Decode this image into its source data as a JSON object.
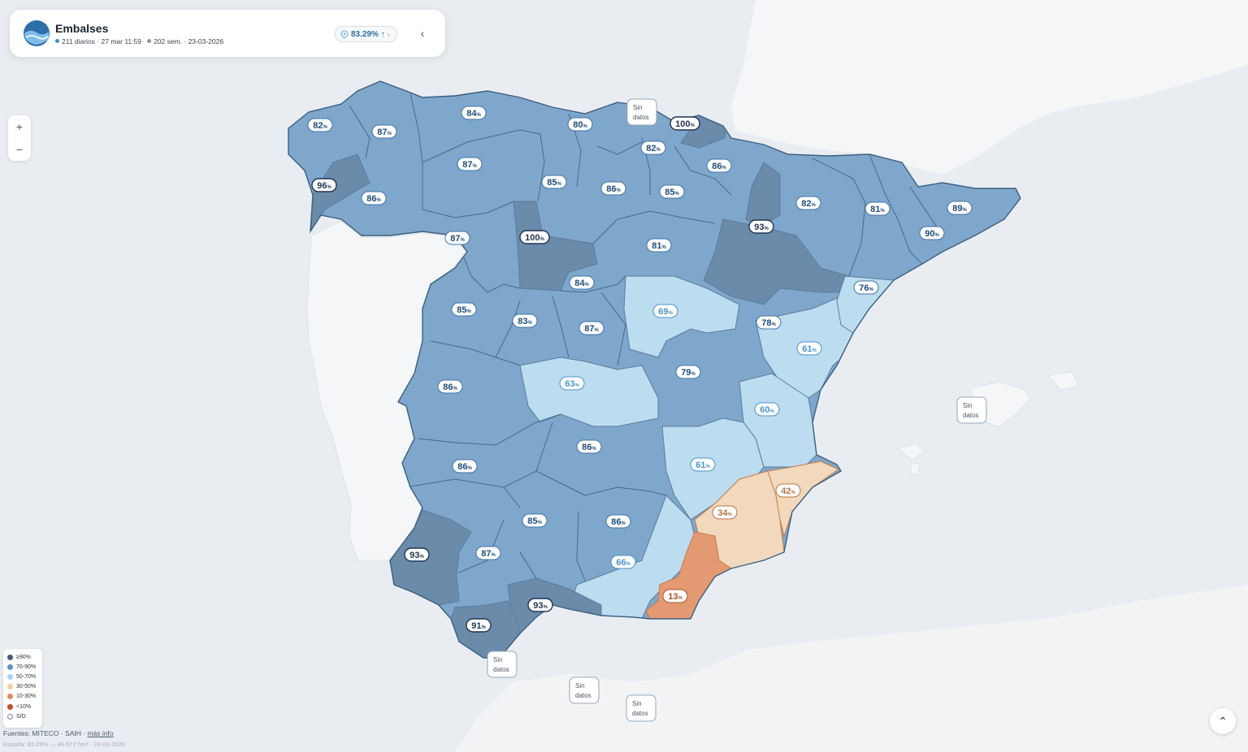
{
  "header": {
    "title": "Embalses",
    "daily_info": "211 diarios · 27 mar 11:59",
    "weekly_info": "202 sem. · 23-03-2026",
    "national_pct": "83.29%",
    "trend": "↑",
    "chevron": "›",
    "collapse_icon": "‹"
  },
  "zoom": {
    "in": "+",
    "out": "−"
  },
  "legend": [
    {
      "label": "≥90%",
      "color": "#3f5f7e"
    },
    {
      "label": "70-90%",
      "color": "#5d93c4"
    },
    {
      "label": "50-70%",
      "color": "#a8d3ec"
    },
    {
      "label": "30-50%",
      "color": "#f3cda8"
    },
    {
      "label": "10-30%",
      "color": "#e38a5c"
    },
    {
      "label": "<10%",
      "color": "#c24a2c"
    },
    {
      "label": "S/D",
      "color": "#ffffff"
    }
  ],
  "credits": {
    "prefix": "Fuentes: MITECO · SAIH · ",
    "link": "más info",
    "summary": "España: 83.29% — 46.677 hm³ · 23-03-2026"
  },
  "up_icon": "⌃",
  "no_data_text": "Sin datos",
  "map_labels": [
    {
      "value": "82",
      "cls": "c70"
    },
    {
      "value": "87",
      "cls": "c70"
    },
    {
      "value": "84",
      "cls": "c70"
    },
    {
      "value": "80",
      "cls": "c70"
    },
    {
      "value": "100",
      "cls": "c90"
    },
    {
      "value": "82",
      "cls": "c70"
    },
    {
      "value": "86",
      "cls": "c70"
    },
    {
      "value": "87",
      "cls": "c70"
    },
    {
      "value": "85",
      "cls": "c70"
    },
    {
      "value": "86",
      "cls": "c70"
    },
    {
      "value": "85",
      "cls": "c70"
    },
    {
      "value": "96",
      "cls": "c90"
    },
    {
      "value": "86",
      "cls": "c70"
    },
    {
      "value": "82",
      "cls": "c70"
    },
    {
      "value": "81",
      "cls": "c70"
    },
    {
      "value": "89",
      "cls": "c70"
    },
    {
      "value": "93",
      "cls": "c90"
    },
    {
      "value": "90",
      "cls": "c70"
    },
    {
      "value": "87",
      "cls": "c70"
    },
    {
      "value": "100",
      "cls": "c90"
    },
    {
      "value": "81",
      "cls": "c70"
    },
    {
      "value": "84",
      "cls": "c70"
    },
    {
      "value": "76",
      "cls": "c70"
    },
    {
      "value": "85",
      "cls": "c70"
    },
    {
      "value": "83",
      "cls": "c70"
    },
    {
      "value": "69",
      "cls": "c50"
    },
    {
      "value": "78",
      "cls": "c70"
    },
    {
      "value": "87",
      "cls": "c70"
    },
    {
      "value": "61",
      "cls": "c50"
    },
    {
      "value": "63",
      "cls": "c50"
    },
    {
      "value": "79",
      "cls": "c70"
    },
    {
      "value": "86",
      "cls": "c70"
    },
    {
      "value": "60",
      "cls": "c50"
    },
    {
      "value": "86",
      "cls": "c70"
    },
    {
      "value": "86",
      "cls": "c70"
    },
    {
      "value": "61",
      "cls": "c50"
    },
    {
      "value": "42",
      "cls": "c30"
    },
    {
      "value": "34",
      "cls": "c30"
    },
    {
      "value": "85",
      "cls": "c70"
    },
    {
      "value": "86",
      "cls": "c70"
    },
    {
      "value": "93",
      "cls": "c90"
    },
    {
      "value": "87",
      "cls": "c70"
    },
    {
      "value": "66",
      "cls": "c50"
    },
    {
      "value": "93",
      "cls": "c90"
    },
    {
      "value": "13",
      "cls": "c10"
    },
    {
      "value": "91",
      "cls": "c90"
    }
  ]
}
